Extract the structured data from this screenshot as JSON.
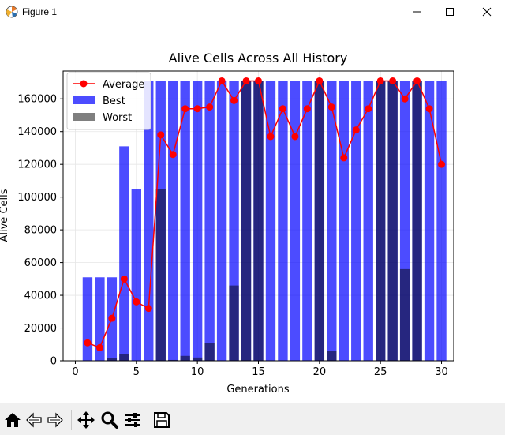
{
  "window": {
    "title": "Figure 1",
    "icon": "matplotlib-icon",
    "controls": [
      "minimize-icon",
      "maximize-icon",
      "close-icon"
    ]
  },
  "toolbar": {
    "buttons": [
      "home-icon",
      "back-arrow-icon",
      "forward-arrow-icon",
      "move-icon",
      "zoom-icon",
      "configure-subplots-icon",
      "save-icon"
    ]
  },
  "chart_data": {
    "type": "bar",
    "title": "Alive Cells Across All History",
    "xlabel": "Generations",
    "ylabel": "Alive Cells",
    "xlim": [
      -1,
      31
    ],
    "ylim": [
      0,
      177000
    ],
    "xticks": [
      0,
      5,
      10,
      15,
      20,
      25,
      30
    ],
    "yticks": [
      0,
      20000,
      40000,
      60000,
      80000,
      100000,
      120000,
      140000,
      160000
    ],
    "grid": true,
    "legend_position": "upper left",
    "x": [
      1,
      2,
      3,
      4,
      5,
      6,
      7,
      8,
      9,
      10,
      11,
      12,
      13,
      14,
      15,
      16,
      17,
      18,
      19,
      20,
      21,
      22,
      23,
      24,
      25,
      26,
      27,
      28,
      29,
      30
    ],
    "series": [
      {
        "name": "Average",
        "kind": "line",
        "color": "#ff0000",
        "values": [
          11000,
          8000,
          26000,
          50000,
          36000,
          32000,
          138000,
          126000,
          154000,
          154000,
          155000,
          171000,
          159000,
          171000,
          171000,
          137000,
          154000,
          137000,
          154000,
          171000,
          155000,
          124000,
          141000,
          154000,
          171000,
          171000,
          160000,
          171000,
          154000,
          120000
        ]
      },
      {
        "name": "Best",
        "kind": "bar",
        "color": "#0000ff",
        "alpha": 0.7,
        "values": [
          51000,
          51000,
          51000,
          131000,
          105000,
          171000,
          171000,
          171000,
          171000,
          171000,
          171000,
          171000,
          171000,
          171000,
          171000,
          171000,
          171000,
          171000,
          171000,
          171000,
          171000,
          171000,
          171000,
          171000,
          171000,
          171000,
          171000,
          171000,
          171000,
          171000
        ]
      },
      {
        "name": "Worst",
        "kind": "bar",
        "color": "#000000",
        "alpha": 0.5,
        "values": [
          0,
          0,
          1500,
          4000,
          0,
          0,
          105000,
          500,
          3000,
          2000,
          11000,
          0,
          46000,
          171000,
          171000,
          0,
          0,
          0,
          0,
          171000,
          6000,
          0,
          0,
          0,
          171000,
          171000,
          56000,
          171000,
          0,
          0
        ]
      }
    ]
  }
}
